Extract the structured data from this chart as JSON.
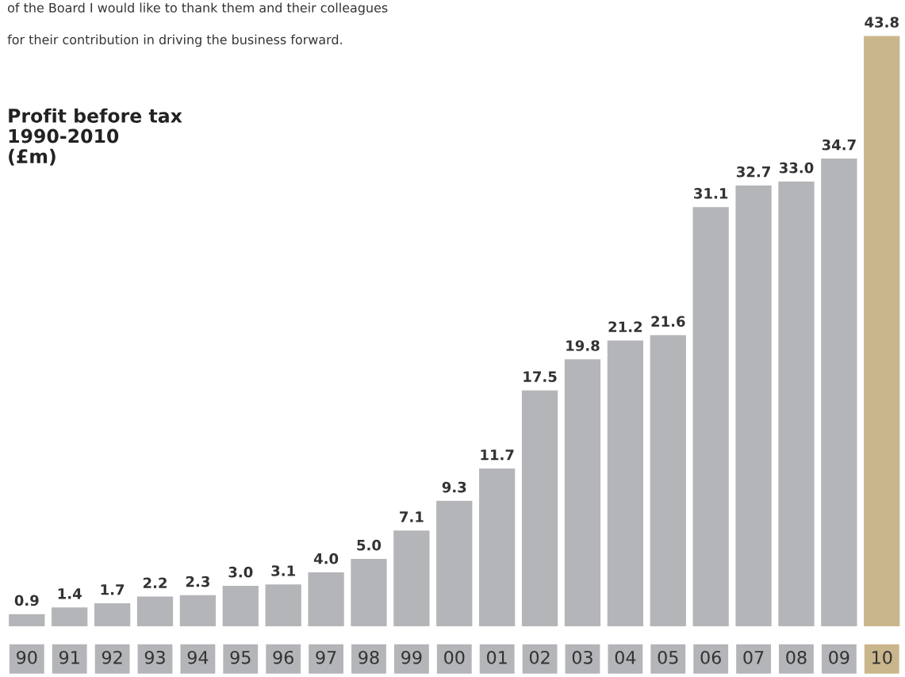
{
  "chart_data": {
    "type": "bar",
    "title": "Profit before tax\n1990-2010\n(£m)",
    "annotations": [
      "of the Board I would like to thank them and their colleagues",
      "for their contribution in driving the business forward."
    ],
    "categories": [
      "90",
      "91",
      "92",
      "93",
      "94",
      "95",
      "96",
      "97",
      "98",
      "99",
      "00",
      "01",
      "02",
      "03",
      "04",
      "05",
      "06",
      "07",
      "08",
      "09",
      "10"
    ],
    "values": [
      0.9,
      1.4,
      1.7,
      2.2,
      2.3,
      3.0,
      3.1,
      4.0,
      5.0,
      7.1,
      9.3,
      11.7,
      17.5,
      19.8,
      21.2,
      21.6,
      31.1,
      32.7,
      33.0,
      34.7,
      43.8
    ],
    "colors": [
      "#b4b5b8",
      "#b4b5b8",
      "#b4b5b8",
      "#b4b5b8",
      "#b4b5b8",
      "#b4b5b8",
      "#b4b5b8",
      "#b4b5b8",
      "#b4b5b8",
      "#b4b5b8",
      "#b4b5b8",
      "#b4b5b8",
      "#b4b5b8",
      "#b4b5b8",
      "#b4b5b8",
      "#b4b5b8",
      "#b4b5b8",
      "#b4b5b8",
      "#b4b5b8",
      "#b4b5b8",
      "#c9b68c"
    ],
    "value_labels": [
      "0.9",
      "1.4",
      "1.7",
      "2.2",
      "2.3",
      "3.0",
      "3.1",
      "4.0",
      "5.0",
      "7.1",
      "9.3",
      "11.7",
      "17.5",
      "19.8",
      "21.2",
      "21.6",
      "31.1",
      "32.7",
      "33.0",
      "34.7",
      "43.8"
    ]
  }
}
